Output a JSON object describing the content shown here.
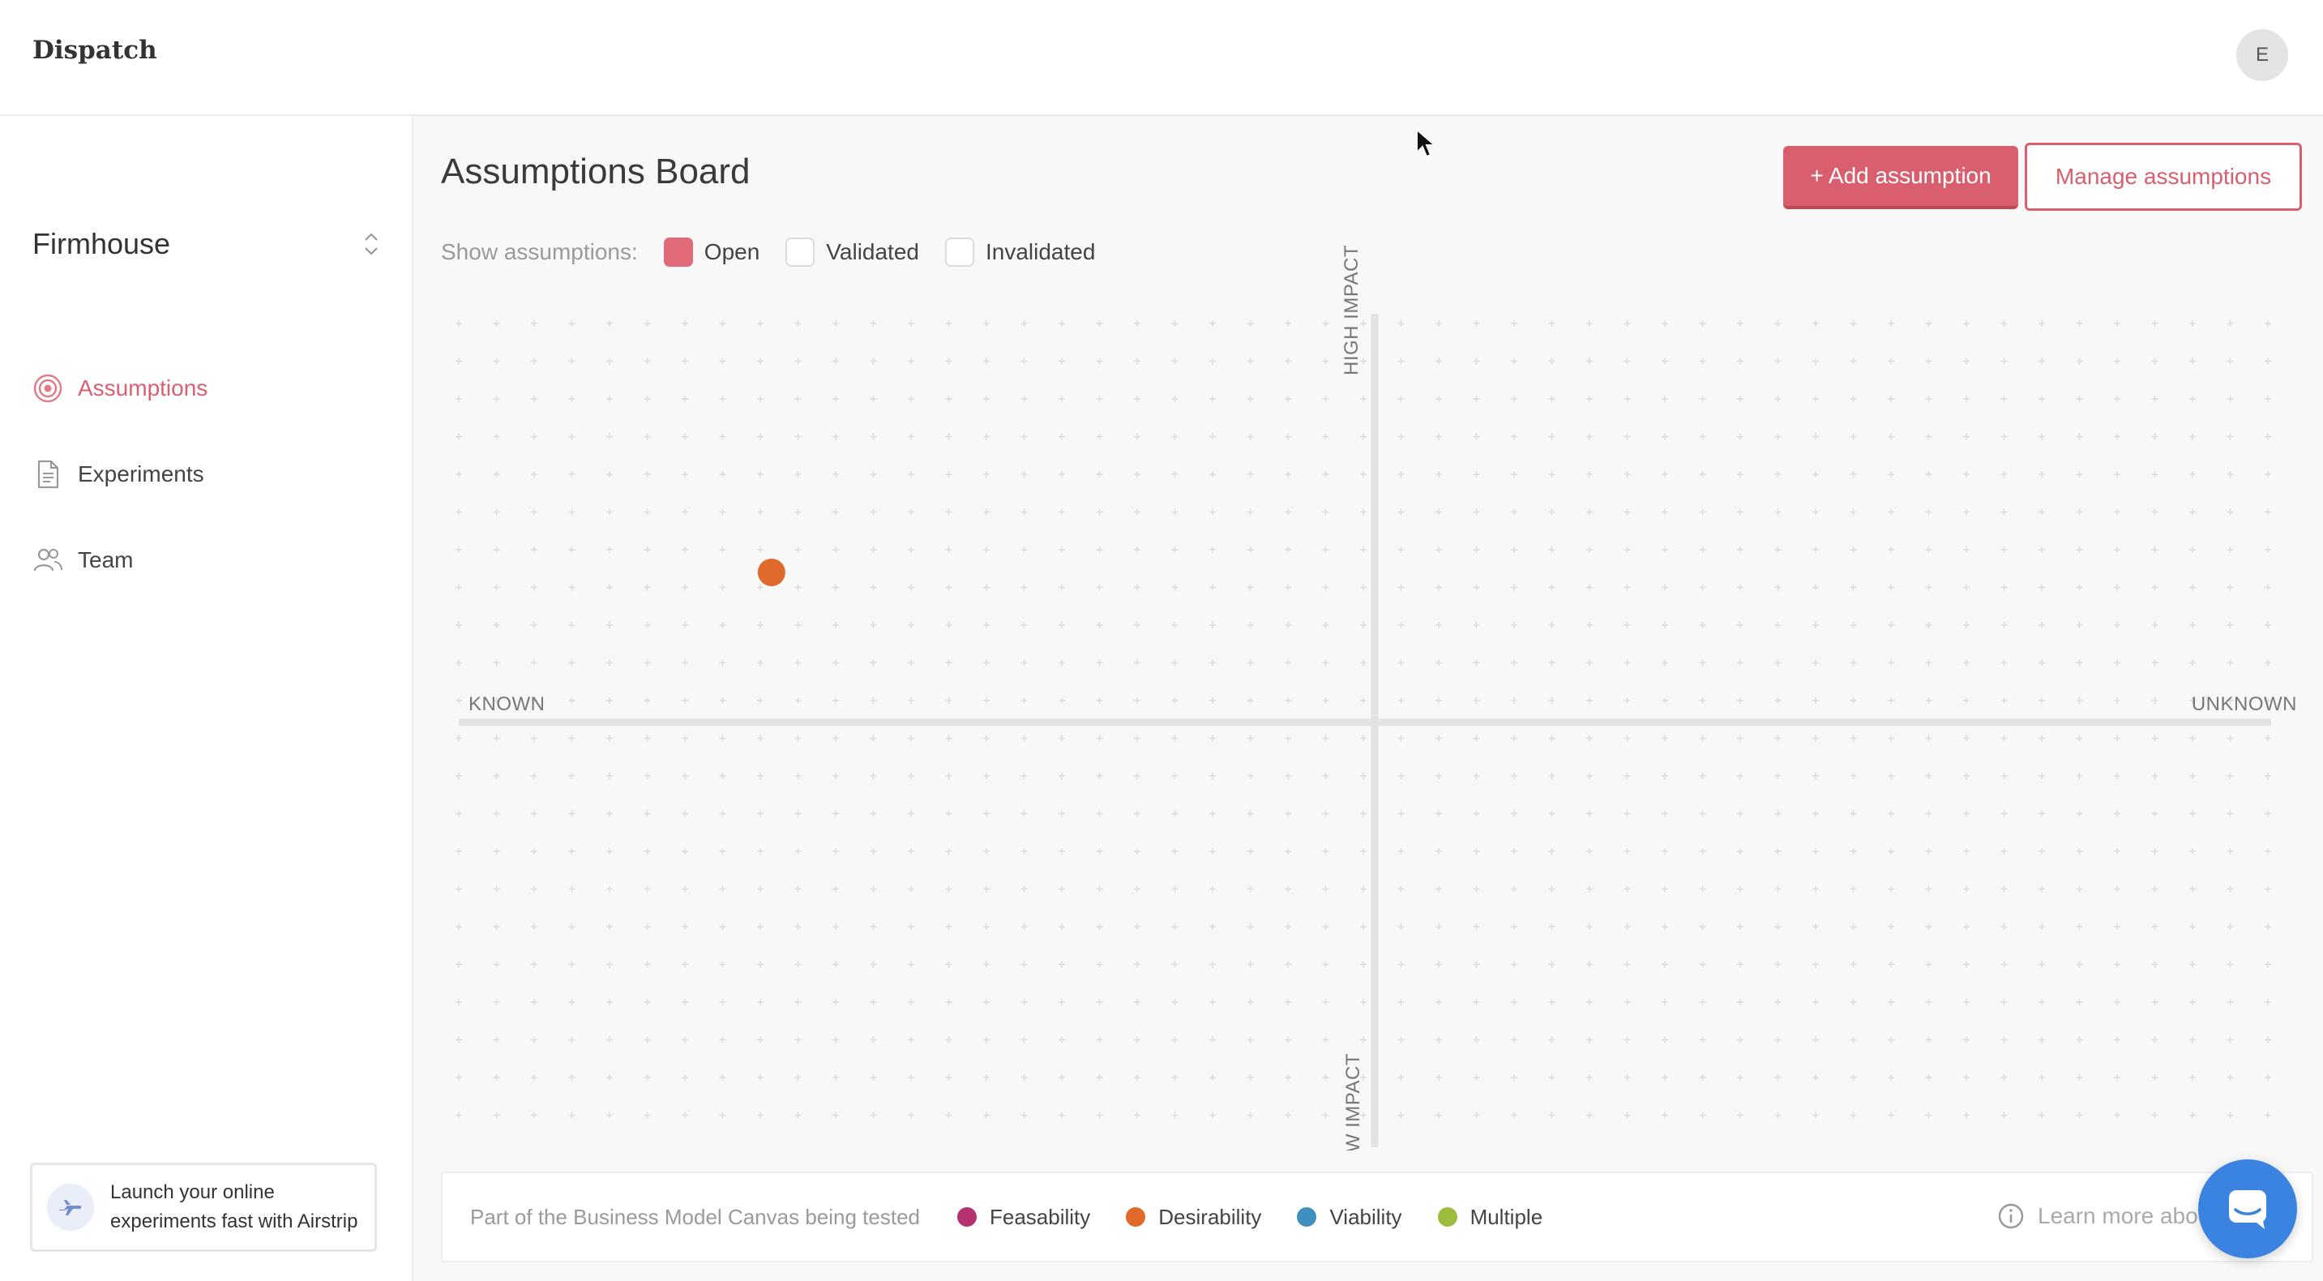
{
  "app": {
    "brand": "Dispatch",
    "avatar_initial": "E"
  },
  "sidebar": {
    "workspace": "Firmhouse",
    "nav": [
      {
        "label": "Assumptions",
        "icon": "target-icon",
        "active": true
      },
      {
        "label": "Experiments",
        "icon": "document-icon",
        "active": false
      },
      {
        "label": "Team",
        "icon": "users-icon",
        "active": false
      }
    ],
    "promo": {
      "line1": "Launch your online",
      "line2": "experiments fast with Airstrip",
      "icon": "airplane-icon"
    }
  },
  "main": {
    "title": "Assumptions Board",
    "add_button": "+ Add assumption",
    "manage_button": "Manage assumptions",
    "filters": {
      "prefix": "Show assumptions:",
      "options": [
        {
          "label": "Open",
          "checked": true
        },
        {
          "label": "Validated",
          "checked": false
        },
        {
          "label": "Invalidated",
          "checked": false
        }
      ]
    },
    "board": {
      "label_left": "KNOWN",
      "label_right": "UNKNOWN",
      "label_top": "HIGH IMPACT",
      "label_bottom": "LOW IMPACT",
      "assumptions": [
        {
          "category": "Desirability",
          "x": -0.665,
          "y": 0.37
        }
      ]
    },
    "legend": {
      "prefix": "Part of the Business Model Canvas being tested",
      "items": [
        {
          "label": "Feasability",
          "color": "#b5316f"
        },
        {
          "label": "Desirability",
          "color": "#e06a2c"
        },
        {
          "label": "Viability",
          "color": "#3f8fbf"
        },
        {
          "label": "Multiple",
          "color": "#9dbb3d"
        }
      ],
      "learn_more": "Learn more about t"
    }
  },
  "colors": {
    "accent": "#d95f6e",
    "chat": "#3b83e0"
  }
}
